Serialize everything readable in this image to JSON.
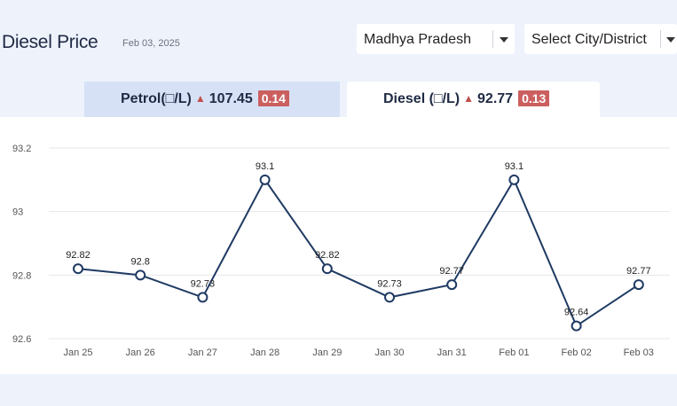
{
  "header": {
    "title": "Diesel Price",
    "date": "Feb 03, 2025",
    "state_select": "Madhya Pradesh",
    "city_select": "Select City/District"
  },
  "tabs": [
    {
      "label": "Petrol(□/L)",
      "price": "107.45",
      "change": "0.14",
      "active": false
    },
    {
      "label": "Diesel (□/L)",
      "price": "92.77",
      "change": "0.13",
      "active": true
    }
  ],
  "colors": {
    "line": "#1f3a63",
    "up_arrow": "#c0504d",
    "badge": "#cb5f5f",
    "grid": "#e5e7eb"
  },
  "chart_data": {
    "type": "line",
    "categories": [
      "Jan 25",
      "Jan 26",
      "Jan 27",
      "Jan 28",
      "Jan 29",
      "Jan 30",
      "Jan 31",
      "Feb 01",
      "Feb 02",
      "Feb 03"
    ],
    "values": [
      92.82,
      92.8,
      92.73,
      93.1,
      92.82,
      92.73,
      92.77,
      93.1,
      92.64,
      92.77
    ],
    "data_labels": [
      "92.82",
      "92.8",
      "92.73",
      "93.1",
      "92.82",
      "92.73",
      "92.77",
      "93.1",
      "92.64",
      "92.77"
    ],
    "yticks": [
      "92.6",
      "92.8",
      "93",
      "93.2"
    ],
    "ylim": [
      92.6,
      93.2
    ],
    "grid": true,
    "title": "",
    "xlabel": "",
    "ylabel": ""
  }
}
